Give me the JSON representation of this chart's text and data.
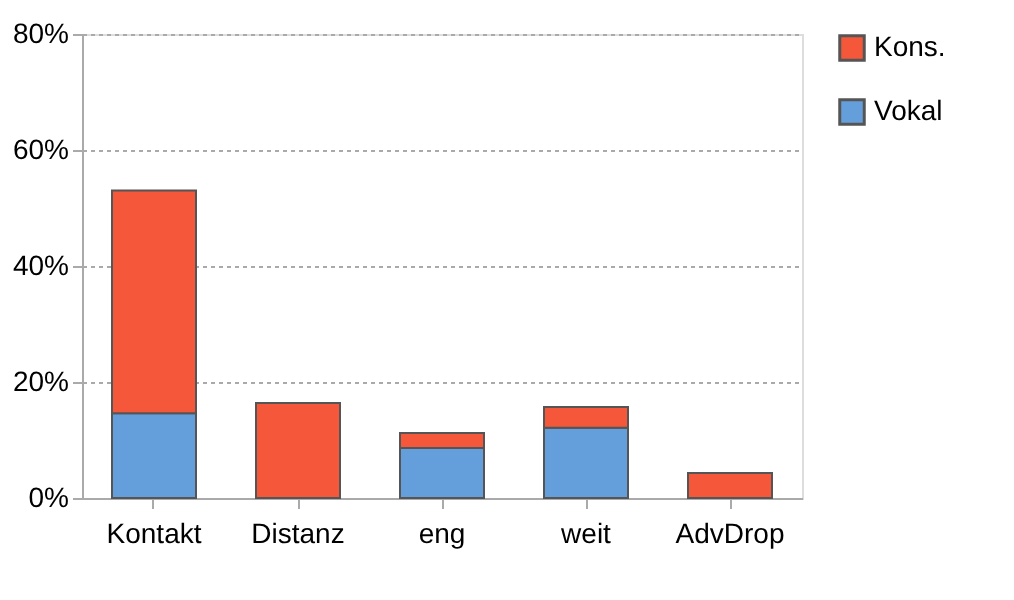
{
  "chart_data": {
    "type": "bar",
    "stacked": true,
    "categories": [
      "Kontakt",
      "Distanz",
      "eng",
      "weit",
      "AdvDrop"
    ],
    "series": [
      {
        "name": "Vokal",
        "color": "#659fdb",
        "values": [
          14.6,
          0,
          8.6,
          12.1,
          0
        ]
      },
      {
        "name": "Kons.",
        "color": "#f4573a",
        "values": [
          38.4,
          16.4,
          2.6,
          3.6,
          4.3
        ]
      }
    ],
    "ylim": [
      0,
      80
    ],
    "yticks": [
      {
        "value": 0,
        "label": "0%"
      },
      {
        "value": 20,
        "label": "20%"
      },
      {
        "value": 40,
        "label": "40%"
      },
      {
        "value": 60,
        "label": "60%"
      },
      {
        "value": 80,
        "label": "80%"
      }
    ],
    "grid": "y",
    "legend": "right"
  }
}
